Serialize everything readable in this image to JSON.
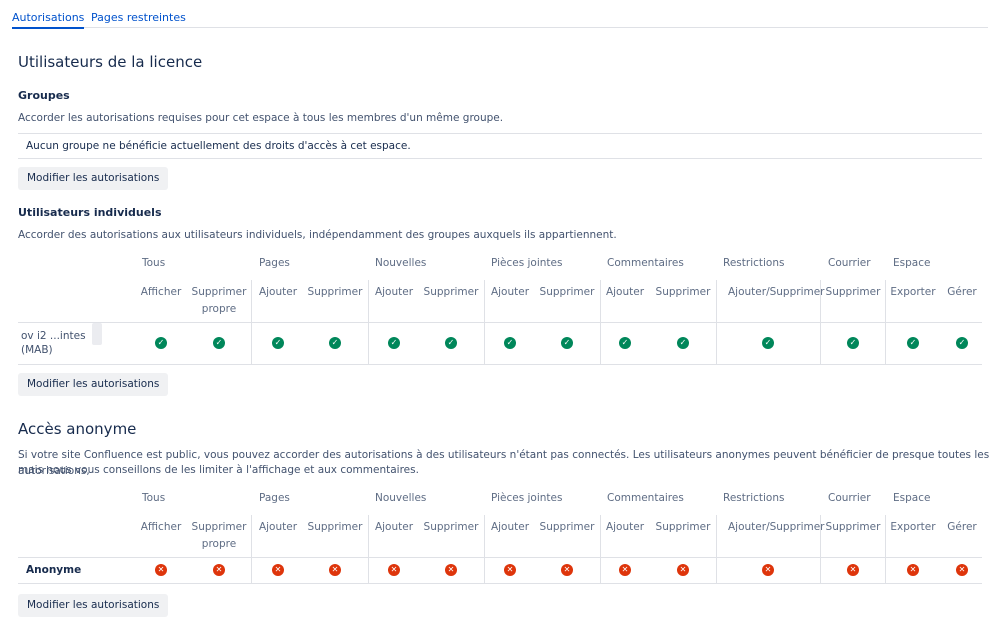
{
  "tabs": [
    {
      "label": "Autorisations",
      "active": true
    },
    {
      "label": "Pages restreintes",
      "active": false
    }
  ],
  "licensed": {
    "title": "Utilisateurs de la licence",
    "groups": {
      "title": "Groupes",
      "description": "Accorder les autorisations requises pour cet espace à tous les membres d'un même groupe.",
      "empty_message": "Aucun groupe ne bénéficie actuellement des droits d'accès à cet espace.",
      "button": "Modifier les autorisations"
    },
    "individuals": {
      "title": "Utilisateurs individuels",
      "description": "Accorder des autorisations aux utilisateurs individuels, indépendamment des groupes auxquels ils appartiennent.",
      "button": "Modifier les autorisations",
      "rows": [
        {
          "name_line1": "ov i2 ...intes",
          "name_line2": "(MAB)",
          "values": [
            "granted",
            "granted",
            "granted",
            "granted",
            "granted",
            "granted",
            "granted",
            "granted",
            "granted",
            "granted",
            "granted",
            "granted",
            "granted",
            "granted"
          ]
        }
      ]
    }
  },
  "anonymous": {
    "title": "Accès anonyme",
    "description_line1": "Si votre site Confluence est public, vous pouvez accorder des autorisations à des utilisateurs n'étant pas connectés. Les utilisateurs anonymes peuvent bénéficier de presque toutes les autorisations,",
    "description_line2": "mais nous vous conseillons de les limiter à l'affichage et aux commentaires.",
    "button": "Modifier les autorisations",
    "rows": [
      {
        "name": "Anonyme",
        "values": [
          "denied",
          "denied",
          "denied",
          "denied",
          "denied",
          "denied",
          "denied",
          "denied",
          "denied",
          "denied",
          "denied",
          "denied",
          "denied",
          "denied"
        ]
      }
    ]
  },
  "permission_groups": [
    "Tous",
    "Pages",
    "Nouvelles",
    "Pièces jointes",
    "Commentaires",
    "Restrictions",
    "Courrier",
    "Espace"
  ],
  "permission_columns": [
    {
      "line1": "Afficher",
      "line2": ""
    },
    {
      "line1": "Supprimer",
      "line2": "propre"
    },
    {
      "line1": "Ajouter",
      "line2": ""
    },
    {
      "line1": "Supprimer",
      "line2": ""
    },
    {
      "line1": "Ajouter",
      "line2": ""
    },
    {
      "line1": "Supprimer",
      "line2": ""
    },
    {
      "line1": "Ajouter",
      "line2": ""
    },
    {
      "line1": "Supprimer",
      "line2": ""
    },
    {
      "line1": "Ajouter",
      "line2": ""
    },
    {
      "line1": "Supprimer",
      "line2": ""
    },
    {
      "line1": "Ajouter/Supprimer",
      "line2": ""
    },
    {
      "line1": "Supprimer",
      "line2": ""
    },
    {
      "line1": "Exporter",
      "line2": ""
    },
    {
      "line1": "Gérer",
      "line2": ""
    }
  ],
  "icons": {
    "granted": "check-circle-icon",
    "denied": "cross-circle-icon"
  },
  "colors": {
    "granted": "#00875a",
    "denied": "#de350b",
    "link": "#0052cc"
  }
}
